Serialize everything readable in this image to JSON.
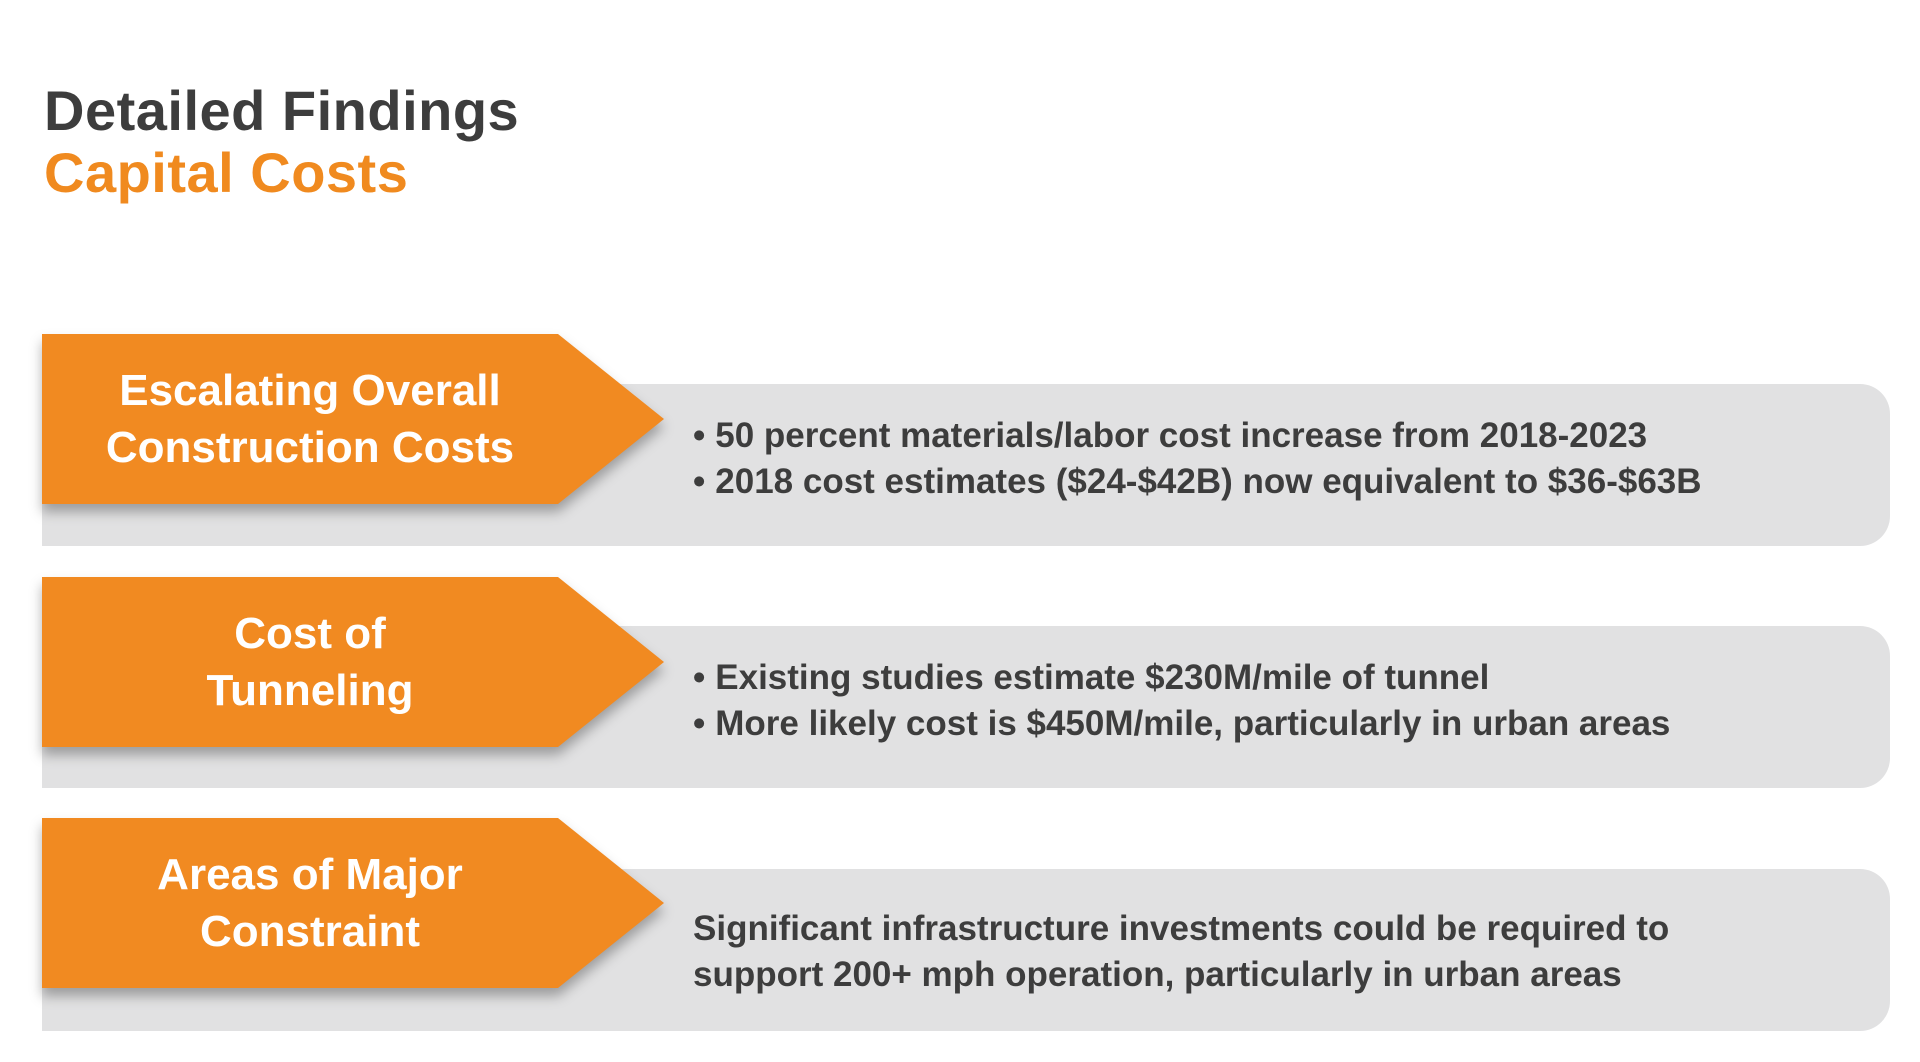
{
  "header": {
    "title": "Detailed Findings",
    "subtitle": "Capital Costs"
  },
  "findings": [
    {
      "label_line1": "Escalating Overall",
      "label_line2": "Construction Costs",
      "bullets": [
        "50 percent materials/labor cost increase from 2018-2023",
        "2018 cost estimates ($24-$42B) now equivalent to $36-$63B"
      ]
    },
    {
      "label_line1": "Cost of",
      "label_line2": "Tunneling",
      "bullets": [
        "Existing studies estimate $230M/mile of tunnel",
        "More likely cost is $450M/mile, particularly in urban areas"
      ]
    },
    {
      "label_line1": "Areas of Major",
      "label_line2": "Constraint",
      "text_line1": "Significant infrastructure investments could be required to",
      "text_line2": "support 200+ mph operation, particularly in urban areas"
    }
  ],
  "colors": {
    "accent": "#f18a21",
    "title": "#3d3d3d",
    "panel": "#e1e1e2"
  }
}
